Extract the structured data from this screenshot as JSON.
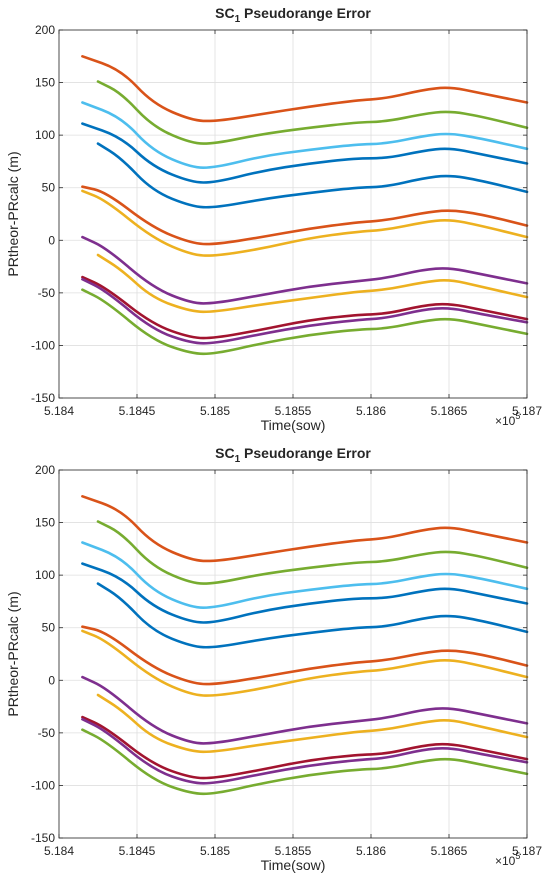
{
  "chart_data": [
    {
      "type": "line",
      "title": "Pseudorange Error",
      "title_prefix": "SC",
      "title_subscript": "1",
      "xlabel": "Time(sow)",
      "ylabel": "PRtheor-PRcalc (m)",
      "x_multiplier": "×10",
      "x_exponent": "5",
      "xlim": [
        5.184,
        5.187
      ],
      "ylim": [
        -150,
        200
      ],
      "x_ticks": [
        "5.184",
        "5.1845",
        "5.185",
        "5.1855",
        "5.186",
        "5.1865",
        "5.187"
      ],
      "y_ticks": [
        "-150",
        "-100",
        "-50",
        "0",
        "50",
        "100",
        "150",
        "200"
      ],
      "grid": true,
      "series": [
        {
          "color": "#D95319",
          "x": [
            5.18415,
            5.1844,
            5.1846,
            5.18485,
            5.185,
            5.1853,
            5.1856,
            5.1859,
            5.1861,
            5.18633,
            5.1865,
            5.1867,
            5.187
          ],
          "y": [
            175,
            162,
            130,
            114,
            113,
            120,
            127,
            133,
            135,
            143,
            146,
            140,
            131
          ]
        },
        {
          "color": "#77AC30",
          "x": [
            5.18425,
            5.1844,
            5.1846,
            5.18485,
            5.185,
            5.1853,
            5.1856,
            5.1859,
            5.1861,
            5.18633,
            5.1865,
            5.1867,
            5.187
          ],
          "y": [
            151,
            140,
            108,
            92,
            92,
            101,
            107,
            112,
            113,
            120,
            123,
            118,
            107
          ]
        },
        {
          "color": "#4DBEEE",
          "x": [
            5.18415,
            5.1844,
            5.1846,
            5.18485,
            5.185,
            5.1853,
            5.1856,
            5.1859,
            5.1861,
            5.18633,
            5.1865,
            5.1867,
            5.187
          ],
          "y": [
            131,
            117,
            85,
            69,
            69,
            80,
            86,
            91,
            92,
            99,
            102,
            97,
            87
          ]
        },
        {
          "color": "#0072BD",
          "x": [
            5.18415,
            5.1844,
            5.1846,
            5.18485,
            5.185,
            5.1853,
            5.1856,
            5.1859,
            5.1861,
            5.18633,
            5.1865,
            5.1867,
            5.187
          ],
          "y": [
            111,
            98,
            70,
            55,
            55,
            66,
            73,
            78,
            78,
            85,
            88,
            82,
            73
          ]
        },
        {
          "color": "#0072BD",
          "x": [
            5.18425,
            5.1844,
            5.1846,
            5.18485,
            5.185,
            5.1853,
            5.1856,
            5.1859,
            5.1861,
            5.18633,
            5.1865,
            5.1867,
            5.187
          ],
          "y": [
            92,
            78,
            47,
            32,
            31,
            39,
            45,
            50,
            51,
            59,
            62,
            57,
            46
          ]
        },
        {
          "color": "#D95319",
          "x": [
            5.18415,
            5.1843,
            5.1846,
            5.18485,
            5.185,
            5.1853,
            5.1856,
            5.1859,
            5.1861,
            5.18633,
            5.1865,
            5.1867,
            5.187
          ],
          "y": [
            51,
            46,
            12,
            -3,
            -4,
            3,
            11,
            17,
            19,
            26,
            29,
            25,
            14
          ]
        },
        {
          "color": "#EDB120",
          "x": [
            5.18415,
            5.1843,
            5.1846,
            5.18485,
            5.185,
            5.1853,
            5.1856,
            5.1859,
            5.1861,
            5.18633,
            5.1865,
            5.1867,
            5.187
          ],
          "y": [
            47,
            38,
            2,
            -14,
            -15,
            -8,
            2,
            8,
            10,
            17,
            20,
            14,
            3
          ]
        },
        {
          "color": "#7E2F8E",
          "x": [
            5.18415,
            5.1843,
            5.1846,
            5.18485,
            5.185,
            5.1853,
            5.1856,
            5.1859,
            5.1861,
            5.18633,
            5.1865,
            5.1867,
            5.187
          ],
          "y": [
            3,
            -7,
            -45,
            -60,
            -60,
            -52,
            -44,
            -39,
            -36,
            -28,
            -26,
            -32,
            -41
          ]
        },
        {
          "color": "#EDB120",
          "x": [
            5.18425,
            5.1844,
            5.1846,
            5.18485,
            5.185,
            5.1853,
            5.1856,
            5.1859,
            5.1861,
            5.18633,
            5.1865,
            5.1867,
            5.187
          ],
          "y": [
            -14,
            -28,
            -55,
            -68,
            -68,
            -61,
            -55,
            -49,
            -47,
            -40,
            -37,
            -44,
            -54
          ]
        },
        {
          "color": "#A2142F",
          "x": [
            5.18415,
            5.1843,
            5.1846,
            5.18485,
            5.185,
            5.1853,
            5.1856,
            5.1859,
            5.1861,
            5.18633,
            5.1865,
            5.1867,
            5.187
          ],
          "y": [
            -35,
            -45,
            -80,
            -93,
            -93,
            -85,
            -76,
            -71,
            -70,
            -62,
            -60,
            -66,
            -75
          ]
        },
        {
          "color": "#7E2F8E",
          "x": [
            5.18415,
            5.1843,
            5.1846,
            5.18485,
            5.185,
            5.1853,
            5.1856,
            5.1859,
            5.1861,
            5.18633,
            5.1865,
            5.1867,
            5.187
          ],
          "y": [
            -37,
            -48,
            -85,
            -98,
            -98,
            -89,
            -81,
            -76,
            -74,
            -66,
            -64,
            -70,
            -78
          ]
        },
        {
          "color": "#77AC30",
          "x": [
            5.18415,
            5.1843,
            5.1846,
            5.18485,
            5.185,
            5.1853,
            5.1856,
            5.1859,
            5.1861,
            5.18633,
            5.1865,
            5.1867,
            5.187
          ],
          "y": [
            -47,
            -58,
            -95,
            -108,
            -108,
            -98,
            -90,
            -85,
            -84,
            -77,
            -74,
            -80,
            -89
          ]
        }
      ]
    },
    {
      "type": "line",
      "title": "Pseudorange Error",
      "title_prefix": "SC",
      "title_subscript": "1",
      "xlabel": "Time(sow)",
      "ylabel": "PRtheor-PRcalc (m)",
      "x_multiplier": "×10",
      "x_exponent": "5",
      "xlim": [
        5.184,
        5.187
      ],
      "ylim": [
        -150,
        200
      ],
      "x_ticks": [
        "5.184",
        "5.1845",
        "5.185",
        "5.1855",
        "5.186",
        "5.1865",
        "5.187"
      ],
      "y_ticks": [
        "-150",
        "-100",
        "-50",
        "0",
        "50",
        "100",
        "150",
        "200"
      ],
      "grid": true,
      "series": [
        {
          "color": "#D95319",
          "x": [
            5.18415,
            5.1844,
            5.1846,
            5.18485,
            5.185,
            5.1853,
            5.1856,
            5.1859,
            5.1861,
            5.18633,
            5.1865,
            5.1867,
            5.187
          ],
          "y": [
            175,
            162,
            130,
            114,
            113,
            120,
            127,
            133,
            135,
            143,
            146,
            140,
            131
          ]
        },
        {
          "color": "#77AC30",
          "x": [
            5.18425,
            5.1844,
            5.1846,
            5.18485,
            5.185,
            5.1853,
            5.1856,
            5.1859,
            5.1861,
            5.18633,
            5.1865,
            5.1867,
            5.187
          ],
          "y": [
            151,
            140,
            108,
            92,
            92,
            101,
            107,
            112,
            113,
            120,
            123,
            118,
            107
          ]
        },
        {
          "color": "#4DBEEE",
          "x": [
            5.18415,
            5.1844,
            5.1846,
            5.18485,
            5.185,
            5.1853,
            5.1856,
            5.1859,
            5.1861,
            5.18633,
            5.1865,
            5.1867,
            5.187
          ],
          "y": [
            131,
            117,
            85,
            69,
            69,
            80,
            86,
            91,
            92,
            99,
            102,
            97,
            87
          ]
        },
        {
          "color": "#0072BD",
          "x": [
            5.18415,
            5.1844,
            5.1846,
            5.18485,
            5.185,
            5.1853,
            5.1856,
            5.1859,
            5.1861,
            5.18633,
            5.1865,
            5.1867,
            5.187
          ],
          "y": [
            111,
            98,
            70,
            55,
            55,
            66,
            73,
            78,
            78,
            85,
            88,
            82,
            73
          ]
        },
        {
          "color": "#0072BD",
          "x": [
            5.18425,
            5.1844,
            5.1846,
            5.18485,
            5.185,
            5.1853,
            5.1856,
            5.1859,
            5.1861,
            5.18633,
            5.1865,
            5.1867,
            5.187
          ],
          "y": [
            92,
            78,
            47,
            32,
            31,
            39,
            45,
            50,
            51,
            59,
            62,
            57,
            46
          ]
        },
        {
          "color": "#D95319",
          "x": [
            5.18415,
            5.1843,
            5.1846,
            5.18485,
            5.185,
            5.1853,
            5.1856,
            5.1859,
            5.1861,
            5.18633,
            5.1865,
            5.1867,
            5.187
          ],
          "y": [
            51,
            46,
            12,
            -3,
            -4,
            3,
            11,
            17,
            19,
            26,
            29,
            25,
            14
          ]
        },
        {
          "color": "#EDB120",
          "x": [
            5.18415,
            5.1843,
            5.1846,
            5.18485,
            5.185,
            5.1853,
            5.1856,
            5.1859,
            5.1861,
            5.18633,
            5.1865,
            5.1867,
            5.187
          ],
          "y": [
            47,
            38,
            2,
            -14,
            -15,
            -8,
            2,
            8,
            10,
            17,
            20,
            14,
            3
          ]
        },
        {
          "color": "#7E2F8E",
          "x": [
            5.18415,
            5.1843,
            5.1846,
            5.18485,
            5.185,
            5.1853,
            5.1856,
            5.1859,
            5.1861,
            5.18633,
            5.1865,
            5.1867,
            5.187
          ],
          "y": [
            3,
            -7,
            -45,
            -60,
            -60,
            -52,
            -44,
            -39,
            -36,
            -28,
            -26,
            -32,
            -41
          ]
        },
        {
          "color": "#EDB120",
          "x": [
            5.18425,
            5.1844,
            5.1846,
            5.18485,
            5.185,
            5.1853,
            5.1856,
            5.1859,
            5.1861,
            5.18633,
            5.1865,
            5.1867,
            5.187
          ],
          "y": [
            -14,
            -28,
            -55,
            -68,
            -68,
            -61,
            -55,
            -49,
            -47,
            -40,
            -37,
            -44,
            -54
          ]
        },
        {
          "color": "#A2142F",
          "x": [
            5.18415,
            5.1843,
            5.1846,
            5.18485,
            5.185,
            5.1853,
            5.1856,
            5.1859,
            5.1861,
            5.18633,
            5.1865,
            5.1867,
            5.187
          ],
          "y": [
            -35,
            -45,
            -80,
            -93,
            -93,
            -85,
            -76,
            -71,
            -70,
            -62,
            -60,
            -66,
            -75
          ]
        },
        {
          "color": "#7E2F8E",
          "x": [
            5.18415,
            5.1843,
            5.1846,
            5.18485,
            5.185,
            5.1853,
            5.1856,
            5.1859,
            5.1861,
            5.18633,
            5.1865,
            5.1867,
            5.187
          ],
          "y": [
            -37,
            -48,
            -85,
            -98,
            -98,
            -89,
            -81,
            -76,
            -74,
            -66,
            -64,
            -70,
            -78
          ]
        },
        {
          "color": "#77AC30",
          "x": [
            5.18415,
            5.1843,
            5.1846,
            5.18485,
            5.185,
            5.1853,
            5.1856,
            5.1859,
            5.1861,
            5.18633,
            5.1865,
            5.1867,
            5.187
          ],
          "y": [
            -47,
            -58,
            -95,
            -108,
            -108,
            -98,
            -90,
            -85,
            -84,
            -77,
            -74,
            -80,
            -89
          ]
        }
      ]
    }
  ]
}
